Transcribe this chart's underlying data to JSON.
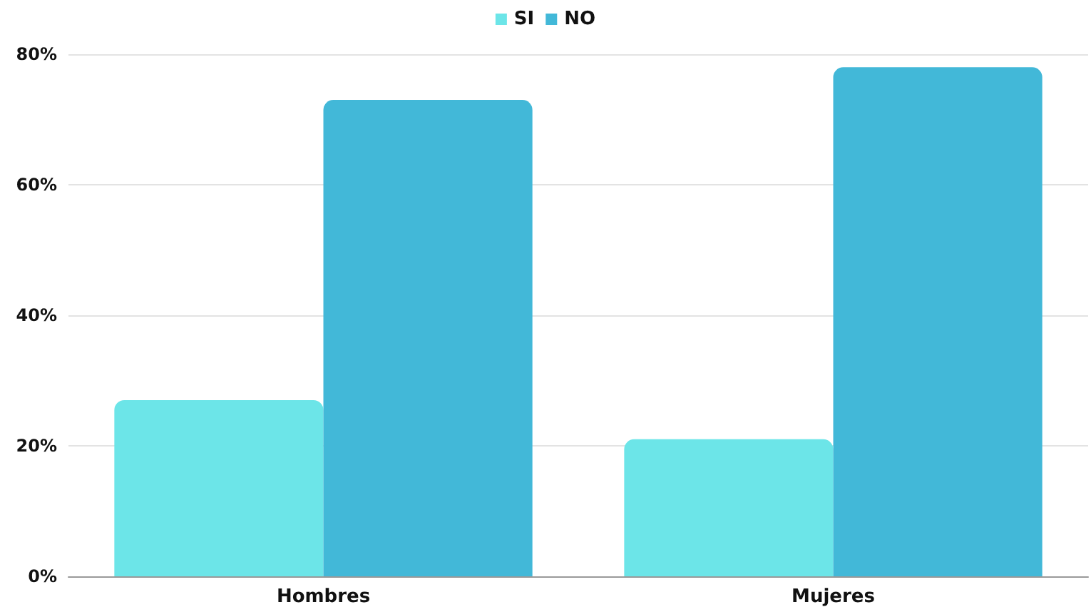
{
  "chart_data": {
    "type": "bar",
    "categories": [
      "Hombres",
      "Mujeres"
    ],
    "series": [
      {
        "name": "SI",
        "color": "#6ce5e8",
        "values": [
          27,
          21
        ]
      },
      {
        "name": "NO",
        "color": "#42b8d8",
        "values": [
          73,
          78
        ]
      }
    ],
    "ylim": [
      0,
      80
    ],
    "yticks": [
      {
        "value": 0,
        "label": "0%"
      },
      {
        "value": 20,
        "label": "20%"
      },
      {
        "value": 40,
        "label": "40%"
      },
      {
        "value": 60,
        "label": "60%"
      },
      {
        "value": 80,
        "label": "80%"
      }
    ],
    "grid": "y",
    "legend": "top"
  }
}
